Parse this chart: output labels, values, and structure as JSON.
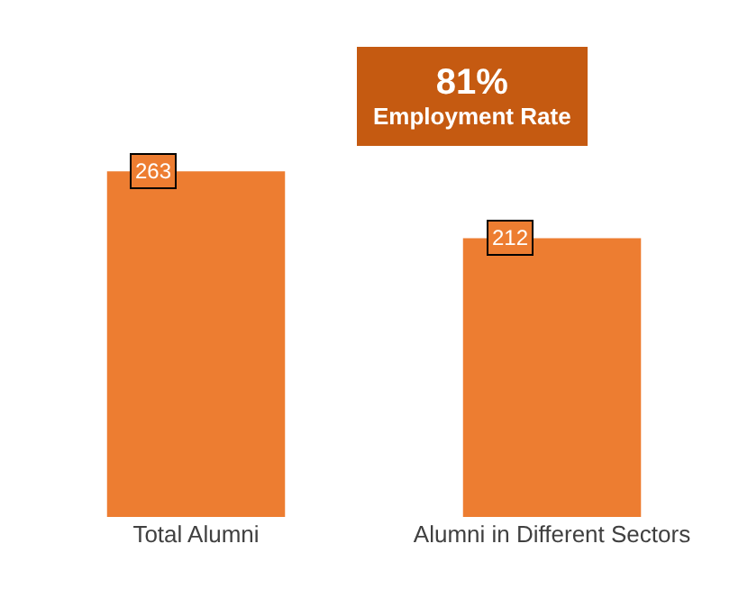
{
  "chart_data": {
    "type": "bar",
    "categories": [
      "Total Alumni",
      "Alumni in Different Sectors"
    ],
    "values": [
      263,
      212
    ],
    "color": "#ed7d31",
    "data_labels": true,
    "annotations": [
      "81%\nEmployment Rate"
    ]
  }
}
